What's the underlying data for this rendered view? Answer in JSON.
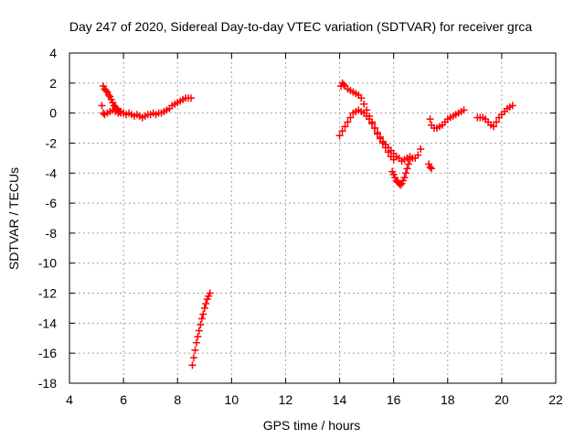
{
  "chart_data": {
    "type": "scatter",
    "title": "Day 247 of 2020, Sidereal Day-to-day VTEC variation (SDTVAR) for receiver grca",
    "xlabel": "GPS time / hours",
    "ylabel": "SDTVAR / TECUs",
    "xlim": [
      4,
      22
    ],
    "ylim": [
      -18,
      4
    ],
    "xticks": [
      4,
      6,
      8,
      10,
      12,
      14,
      16,
      18,
      20,
      22
    ],
    "yticks": [
      -18,
      -16,
      -14,
      -12,
      -10,
      -8,
      -6,
      -4,
      -2,
      0,
      2,
      4
    ],
    "grid": true,
    "marker": "+",
    "color": "#ff0000",
    "series": [
      {
        "x": [
          5.2,
          5.25,
          5.3,
          5.35,
          5.4,
          5.45,
          5.5,
          5.55,
          5.6,
          5.65,
          5.7,
          5.75,
          5.8,
          5.85,
          5.9,
          5.25,
          5.3,
          5.4,
          5.5,
          5.6,
          5.7,
          5.8,
          5.9,
          6.0,
          6.1,
          6.2,
          6.3,
          6.4,
          6.5,
          6.6,
          6.7,
          6.8,
          6.9,
          7.0,
          7.1,
          7.2,
          7.3,
          7.4,
          7.5,
          7.6,
          7.7,
          7.8,
          7.9,
          8.0,
          8.1,
          8.2,
          8.3,
          8.4,
          8.5
        ],
        "y": [
          0.5,
          1.8,
          1.6,
          1.5,
          1.4,
          1.2,
          1.1,
          0.9,
          0.7,
          0.5,
          0.4,
          0.3,
          0.2,
          0.1,
          0.0,
          0.0,
          -0.1,
          0.0,
          0.1,
          0.2,
          0.1,
          0.0,
          0.1,
          0.0,
          -0.1,
          0.0,
          -0.1,
          -0.2,
          -0.1,
          -0.2,
          -0.3,
          -0.2,
          -0.1,
          -0.1,
          0.0,
          -0.1,
          0.0,
          0.0,
          0.1,
          0.2,
          0.3,
          0.5,
          0.6,
          0.7,
          0.8,
          0.9,
          1.0,
          1.0,
          1.0
        ]
      },
      {
        "x": [
          8.55,
          8.6,
          8.65,
          8.7,
          8.75,
          8.8,
          8.85,
          8.9,
          8.95,
          9.0,
          9.05,
          9.1,
          9.15,
          9.2
        ],
        "y": [
          -16.8,
          -16.3,
          -15.8,
          -15.3,
          -14.9,
          -14.5,
          -14.1,
          -13.7,
          -13.4,
          -13.0,
          -12.7,
          -12.4,
          -12.2,
          -12.0
        ]
      },
      {
        "x": [
          14.0,
          14.1,
          14.2,
          14.3,
          14.4,
          14.5,
          14.6,
          14.7,
          14.8,
          14.9,
          15.0,
          15.1,
          15.2,
          15.3,
          15.4,
          15.5,
          15.6,
          15.7,
          15.8,
          15.9,
          16.0,
          16.1,
          16.2,
          16.3,
          16.4,
          16.5,
          16.6,
          16.7,
          16.8,
          16.9,
          17.0
        ],
        "y": [
          -1.5,
          -1.2,
          -0.9,
          -0.6,
          -0.3,
          0.0,
          0.1,
          0.2,
          0.1,
          0.0,
          -0.2,
          -0.4,
          -0.7,
          -1.0,
          -1.3,
          -1.6,
          -1.9,
          -2.1,
          -2.3,
          -2.5,
          -2.7,
          -2.9,
          -3.0,
          -3.2,
          -3.1,
          -3.0,
          -2.9,
          -3.0,
          -3.0,
          -2.8,
          -2.4
        ]
      },
      {
        "x": [
          14.05,
          14.1,
          14.15,
          14.2,
          14.3,
          14.4,
          14.5,
          14.6,
          14.7,
          14.8,
          14.9,
          15.0,
          15.1,
          15.2,
          15.3,
          15.4,
          15.5,
          15.6,
          15.7,
          15.8,
          15.9,
          16.0
        ],
        "y": [
          1.8,
          2.0,
          1.9,
          1.8,
          1.6,
          1.5,
          1.4,
          1.3,
          1.2,
          1.0,
          0.6,
          0.2,
          -0.2,
          -0.6,
          -1.0,
          -1.4,
          -1.7,
          -2.0,
          -2.3,
          -2.6,
          -2.9,
          -3.1
        ]
      },
      {
        "x": [
          15.95,
          16.0,
          16.05,
          16.1,
          16.15,
          16.2,
          16.25,
          16.3,
          16.35,
          16.4,
          16.45,
          16.5,
          16.55,
          16.6
        ],
        "y": [
          -3.9,
          -4.1,
          -4.3,
          -4.5,
          -4.6,
          -4.7,
          -4.8,
          -4.7,
          -4.5,
          -4.3,
          -4.0,
          -3.7,
          -3.4,
          -3.1
        ]
      },
      {
        "x": [
          17.3,
          17.35,
          17.4,
          17.35,
          17.4,
          17.5,
          17.6,
          17.7,
          17.8,
          17.9,
          18.0,
          18.1,
          18.2,
          18.3,
          18.4,
          18.5,
          18.6
        ],
        "y": [
          -3.4,
          -3.6,
          -3.7,
          -0.4,
          -0.8,
          -1.0,
          -1.0,
          -0.9,
          -0.8,
          -0.6,
          -0.4,
          -0.3,
          -0.2,
          -0.1,
          0.0,
          0.1,
          0.2
        ]
      },
      {
        "x": [
          19.1,
          19.2,
          19.3,
          19.4,
          19.5,
          19.6,
          19.7,
          19.8,
          19.9,
          20.0,
          20.1,
          20.2,
          20.3,
          20.4
        ],
        "y": [
          -0.3,
          -0.3,
          -0.3,
          -0.4,
          -0.6,
          -0.8,
          -0.9,
          -0.6,
          -0.3,
          -0.1,
          0.1,
          0.3,
          0.4,
          0.5
        ]
      }
    ]
  }
}
